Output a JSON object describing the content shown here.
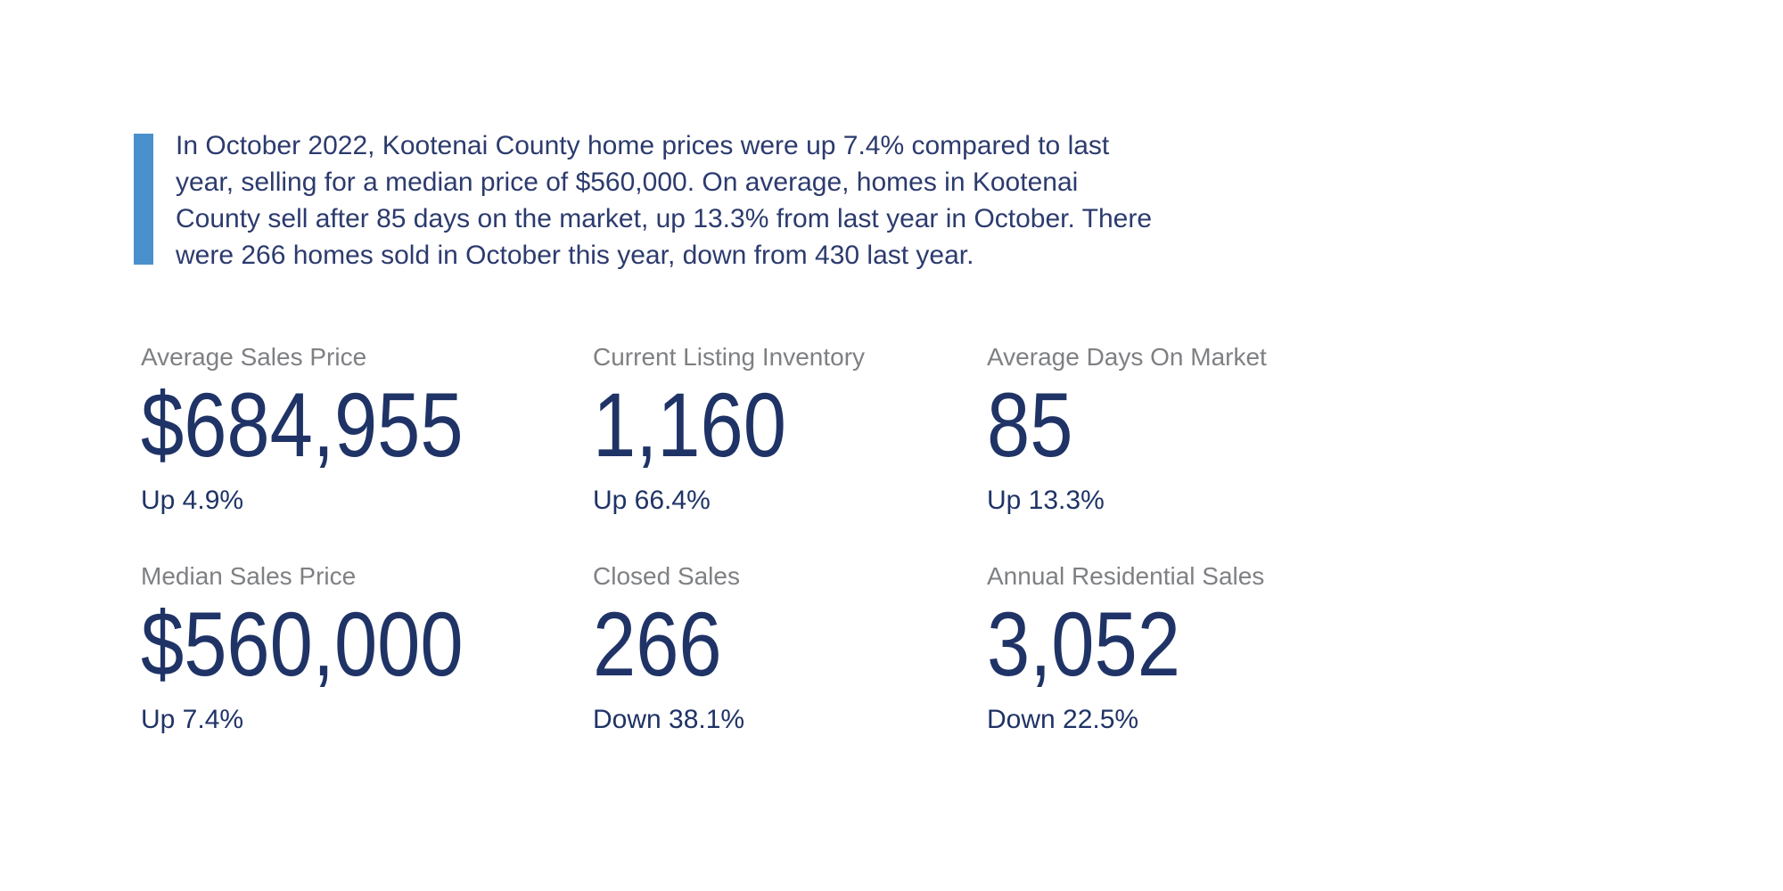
{
  "quote": {
    "lines": [
      "In October 2022, Kootenai County home prices were up 7.4% compared to last",
      "year, selling for a median price of $560,000. On average, homes in Kootenai",
      "County sell after 85 days on the market, up 13.3% from last year in October. There",
      "were 266 homes sold in October this year, down from 430 last year."
    ]
  },
  "stats": [
    {
      "label": "Average Sales Price",
      "value": "$684,955",
      "change": "Up 4.9%"
    },
    {
      "label": "Current Listing Inventory",
      "value": "1,160",
      "change": "Up 66.4%"
    },
    {
      "label": "Average Days On Market",
      "value": "85",
      "change": "Up 13.3%"
    },
    {
      "label": "Median Sales Price",
      "value": "$560,000",
      "change": "Up 7.4%"
    },
    {
      "label": "Closed Sales",
      "value": "266",
      "change": "Down 38.1%"
    },
    {
      "label": "Annual Residential Sales",
      "value": "3,052",
      "change": "Down 22.5%"
    }
  ],
  "colors": {
    "navy": "#1f3366",
    "paragraph_navy": "#2c3b6e",
    "label_gray": "#7e8083",
    "accent_blue": "#4a90cd",
    "background": "#ffffff"
  }
}
